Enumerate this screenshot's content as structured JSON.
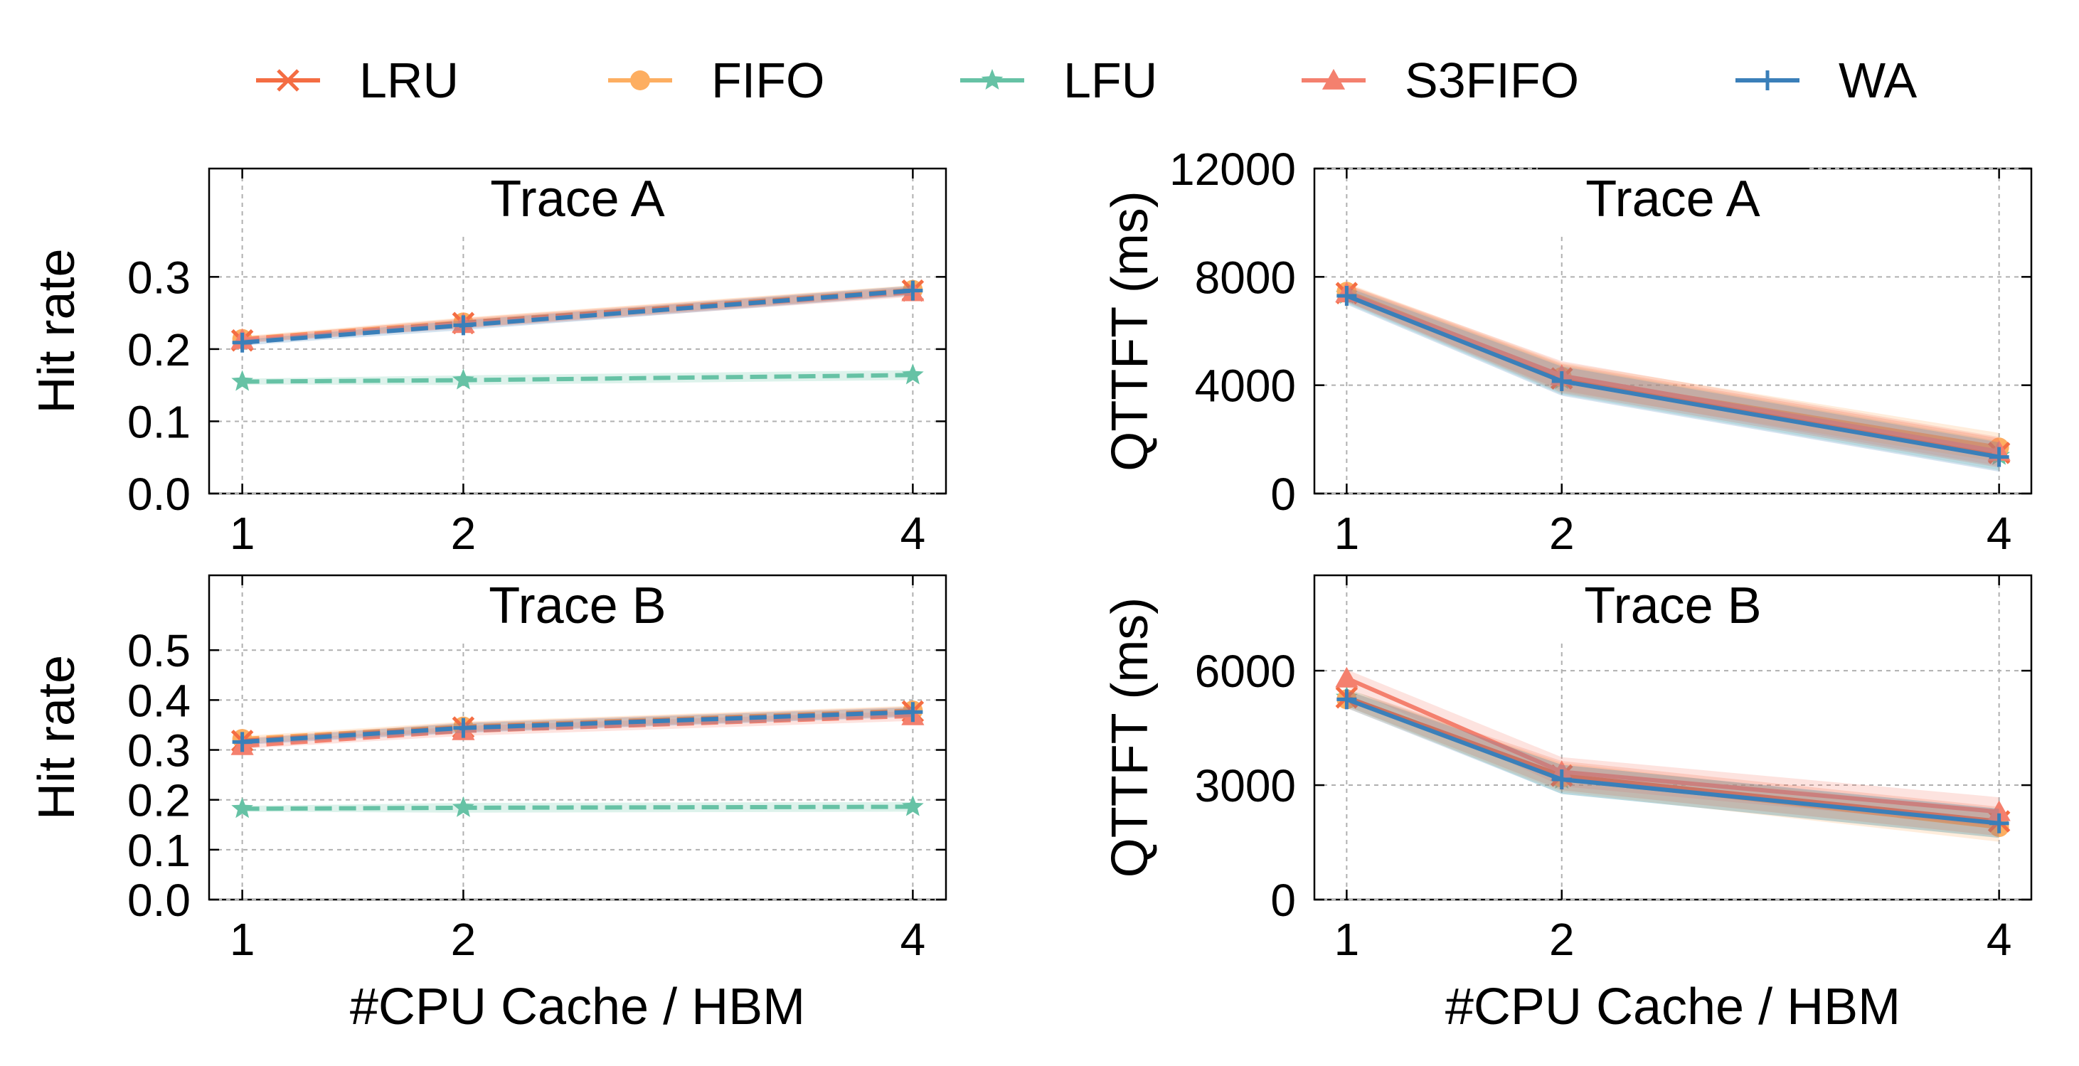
{
  "legend": [
    {
      "name": "LRU",
      "color": "#f46d43",
      "marker": "x-icon"
    },
    {
      "name": "FIFO",
      "color": "#fdae61",
      "marker": "circle-icon"
    },
    {
      "name": "LFU",
      "color": "#66c2a5",
      "marker": "star-icon"
    },
    {
      "name": "S3FIFO",
      "color": "#f4806e",
      "marker": "triangle-icon"
    },
    {
      "name": "WA",
      "color": "#3a7fb9",
      "marker": "plus-icon"
    }
  ],
  "chart_data": [
    {
      "type": "line",
      "title": "Trace A",
      "xlabel": "",
      "ylabel": "Hit rate",
      "x": [
        1,
        2,
        4
      ],
      "x_tick_labels": [
        "1",
        "2",
        "4"
      ],
      "ylim": [
        0,
        0.45
      ],
      "yticks": [
        0,
        0.1,
        0.2,
        0.3
      ],
      "ytick_labels": [
        "0.0",
        "0.1",
        "0.2",
        "0.3"
      ],
      "line_style": "dashed",
      "series": [
        {
          "name": "LRU",
          "values": [
            0.212,
            0.236,
            0.281
          ]
        },
        {
          "name": "FIFO",
          "values": [
            0.214,
            0.237,
            0.282
          ]
        },
        {
          "name": "LFU",
          "values": [
            0.155,
            0.157,
            0.164
          ]
        },
        {
          "name": "S3FIFO",
          "values": [
            0.213,
            0.235,
            0.279
          ]
        },
        {
          "name": "WA",
          "values": [
            0.209,
            0.233,
            0.281
          ]
        }
      ]
    },
    {
      "type": "line",
      "title": "Trace A",
      "xlabel": "",
      "ylabel": "QTTFT (ms)",
      "x": [
        1,
        2,
        4
      ],
      "x_tick_labels": [
        "1",
        "2",
        "4"
      ],
      "ylim": [
        0,
        12000
      ],
      "yticks": [
        0,
        4000,
        8000,
        12000
      ],
      "ytick_labels": [
        "0",
        "4000",
        "8000",
        "12000"
      ],
      "line_style": "solid",
      "series": [
        {
          "name": "LRU",
          "values": [
            7400,
            4250,
            1500
          ]
        },
        {
          "name": "FIFO",
          "values": [
            7450,
            4300,
            1700
          ]
        },
        {
          "name": "LFU",
          "values": [
            7350,
            4200,
            1400
          ]
        },
        {
          "name": "S3FIFO",
          "values": [
            7400,
            4350,
            1550
          ]
        },
        {
          "name": "WA",
          "values": [
            7300,
            4150,
            1350
          ]
        }
      ]
    },
    {
      "type": "line",
      "title": "Trace B",
      "xlabel": "#CPU Cache / HBM",
      "ylabel": "Hit rate",
      "x": [
        1,
        2,
        4
      ],
      "x_tick_labels": [
        "1",
        "2",
        "4"
      ],
      "ylim": [
        0,
        0.65
      ],
      "yticks": [
        0,
        0.1,
        0.2,
        0.3,
        0.4,
        0.5
      ],
      "ytick_labels": [
        "0.0",
        "0.1",
        "0.2",
        "0.3",
        "0.4",
        "0.5"
      ],
      "line_style": "dashed",
      "series": [
        {
          "name": "LRU",
          "values": [
            0.318,
            0.345,
            0.377
          ]
        },
        {
          "name": "FIFO",
          "values": [
            0.322,
            0.347,
            0.379
          ]
        },
        {
          "name": "LFU",
          "values": [
            0.182,
            0.184,
            0.186
          ]
        },
        {
          "name": "S3FIFO",
          "values": [
            0.308,
            0.338,
            0.368
          ]
        },
        {
          "name": "WA",
          "values": [
            0.316,
            0.344,
            0.376
          ]
        }
      ]
    },
    {
      "type": "line",
      "title": "Trace B",
      "xlabel": "#CPU Cache / HBM",
      "ylabel": "QTTFT (ms)",
      "x": [
        1,
        2,
        4
      ],
      "x_tick_labels": [
        "1",
        "2",
        "4"
      ],
      "ylim": [
        0,
        8500
      ],
      "yticks": [
        0,
        3000,
        6000
      ],
      "ytick_labels": [
        "0",
        "3000",
        "6000"
      ],
      "line_style": "solid",
      "series": [
        {
          "name": "LRU",
          "values": [
            5300,
            3250,
            2050
          ]
        },
        {
          "name": "FIFO",
          "values": [
            5250,
            3200,
            1900
          ]
        },
        {
          "name": "LFU",
          "values": [
            5300,
            3150,
            2000
          ]
        },
        {
          "name": "S3FIFO",
          "values": [
            5800,
            3350,
            2300
          ]
        },
        {
          "name": "WA",
          "values": [
            5250,
            3150,
            2000
          ]
        }
      ]
    }
  ]
}
